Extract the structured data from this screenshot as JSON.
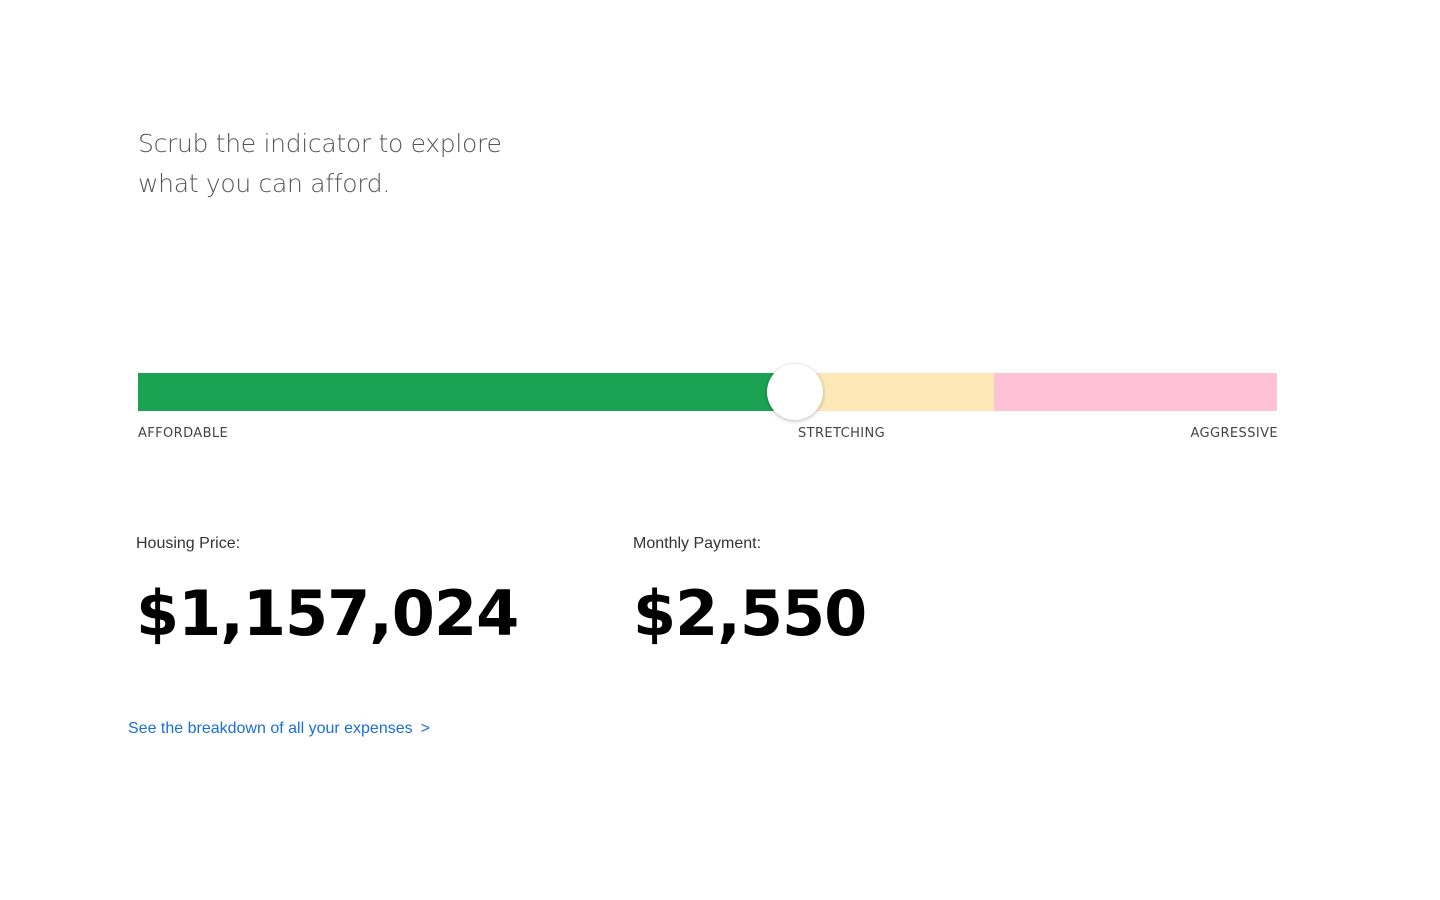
{
  "intro": {
    "line1": "Scrub the indicator to explore",
    "line2": "what you can afford."
  },
  "affordability_scale": {
    "zones": [
      {
        "label": "AFFORDABLE",
        "color": "#1aa352"
      },
      {
        "label": "STRETCHING",
        "color": "#fde9b8"
      },
      {
        "label": "AGGRESSIVE",
        "color": "#ffc1d6"
      }
    ],
    "indicator_fraction": 0.577
  },
  "metrics": {
    "housing_price_label": "Housing Price:",
    "housing_price_value": "$1,157,024",
    "monthly_payment_label": "Monthly Payment:",
    "monthly_payment_value": "$2,550"
  },
  "breakdown_link": {
    "label": "See the breakdown of all your expenses",
    "chevron": ">",
    "color": "#1a6fd9"
  }
}
